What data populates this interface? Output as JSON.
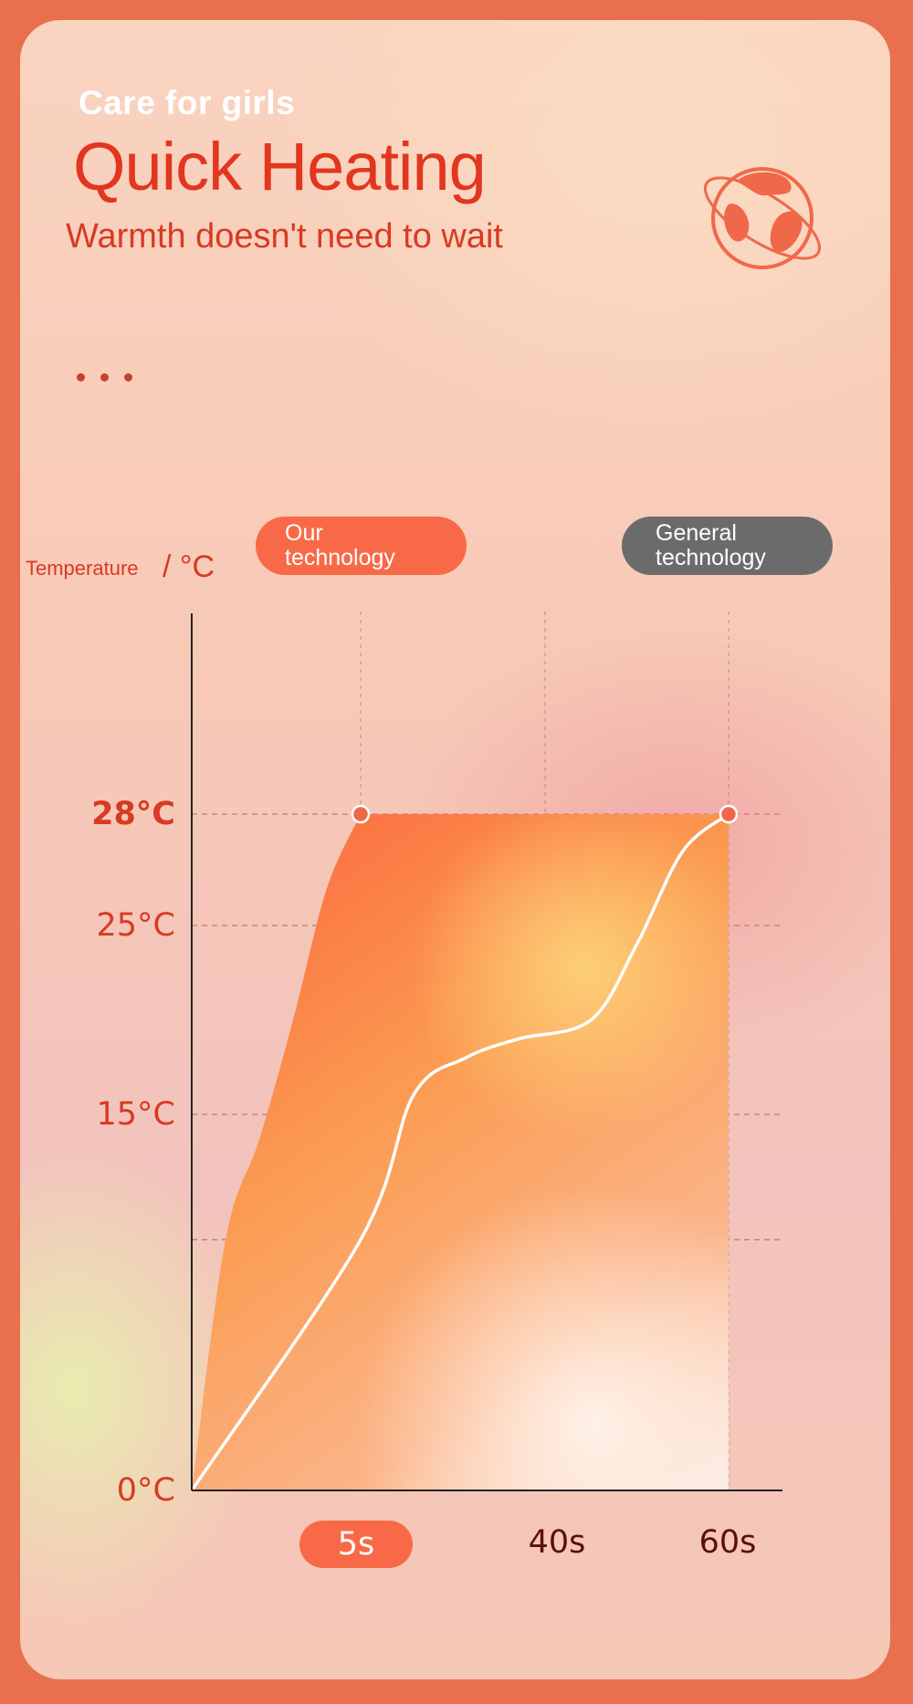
{
  "header": {
    "kicker": "Care for girls",
    "title": "Quick Heating",
    "subtitle": "Warmth doesn't need to wait"
  },
  "icons": {
    "badge": "globe-orbit-icon",
    "more": "ellipsis-icon"
  },
  "legend": {
    "ours_line1": "Our",
    "ours_line2": "technology",
    "general_line1": "General",
    "general_line2": "technology"
  },
  "axis": {
    "ylabel_word": "Temperature",
    "ylabel_unit": "/ °C"
  },
  "colors": {
    "accent": "#f86a47",
    "title": "#e2361f",
    "general": "#6b6b6b",
    "x_tick_text": "#5a0f08"
  },
  "chart_data": {
    "type": "area",
    "xlabel": "",
    "ylabel": "Temperature / °C",
    "y_ticks": [
      {
        "value": 0,
        "label": "0°C"
      },
      {
        "value": 15,
        "label": "15°C"
      },
      {
        "value": 25,
        "label": "25°C"
      },
      {
        "value": 28,
        "label": "28°C"
      }
    ],
    "x_ticks": [
      {
        "value": 5,
        "label": "5s",
        "highlight": true
      },
      {
        "value": 40,
        "label": "40s",
        "highlight": false
      },
      {
        "value": 60,
        "label": "60s",
        "highlight": false
      }
    ],
    "series": [
      {
        "name": "Our technology",
        "x": [
          0,
          1,
          2,
          3,
          4,
          5,
          60
        ],
        "y": [
          0,
          10,
          14,
          20,
          26,
          28,
          28
        ]
      },
      {
        "name": "General technology",
        "x": [
          0,
          5,
          15,
          25,
          35,
          45,
          50,
          55,
          60
        ],
        "y": [
          0,
          10,
          16,
          18,
          19,
          20,
          24,
          27,
          28
        ]
      }
    ],
    "peak_points": [
      {
        "x": 5,
        "y": 28
      },
      {
        "x": 60,
        "y": 28
      }
    ],
    "grid": true
  }
}
